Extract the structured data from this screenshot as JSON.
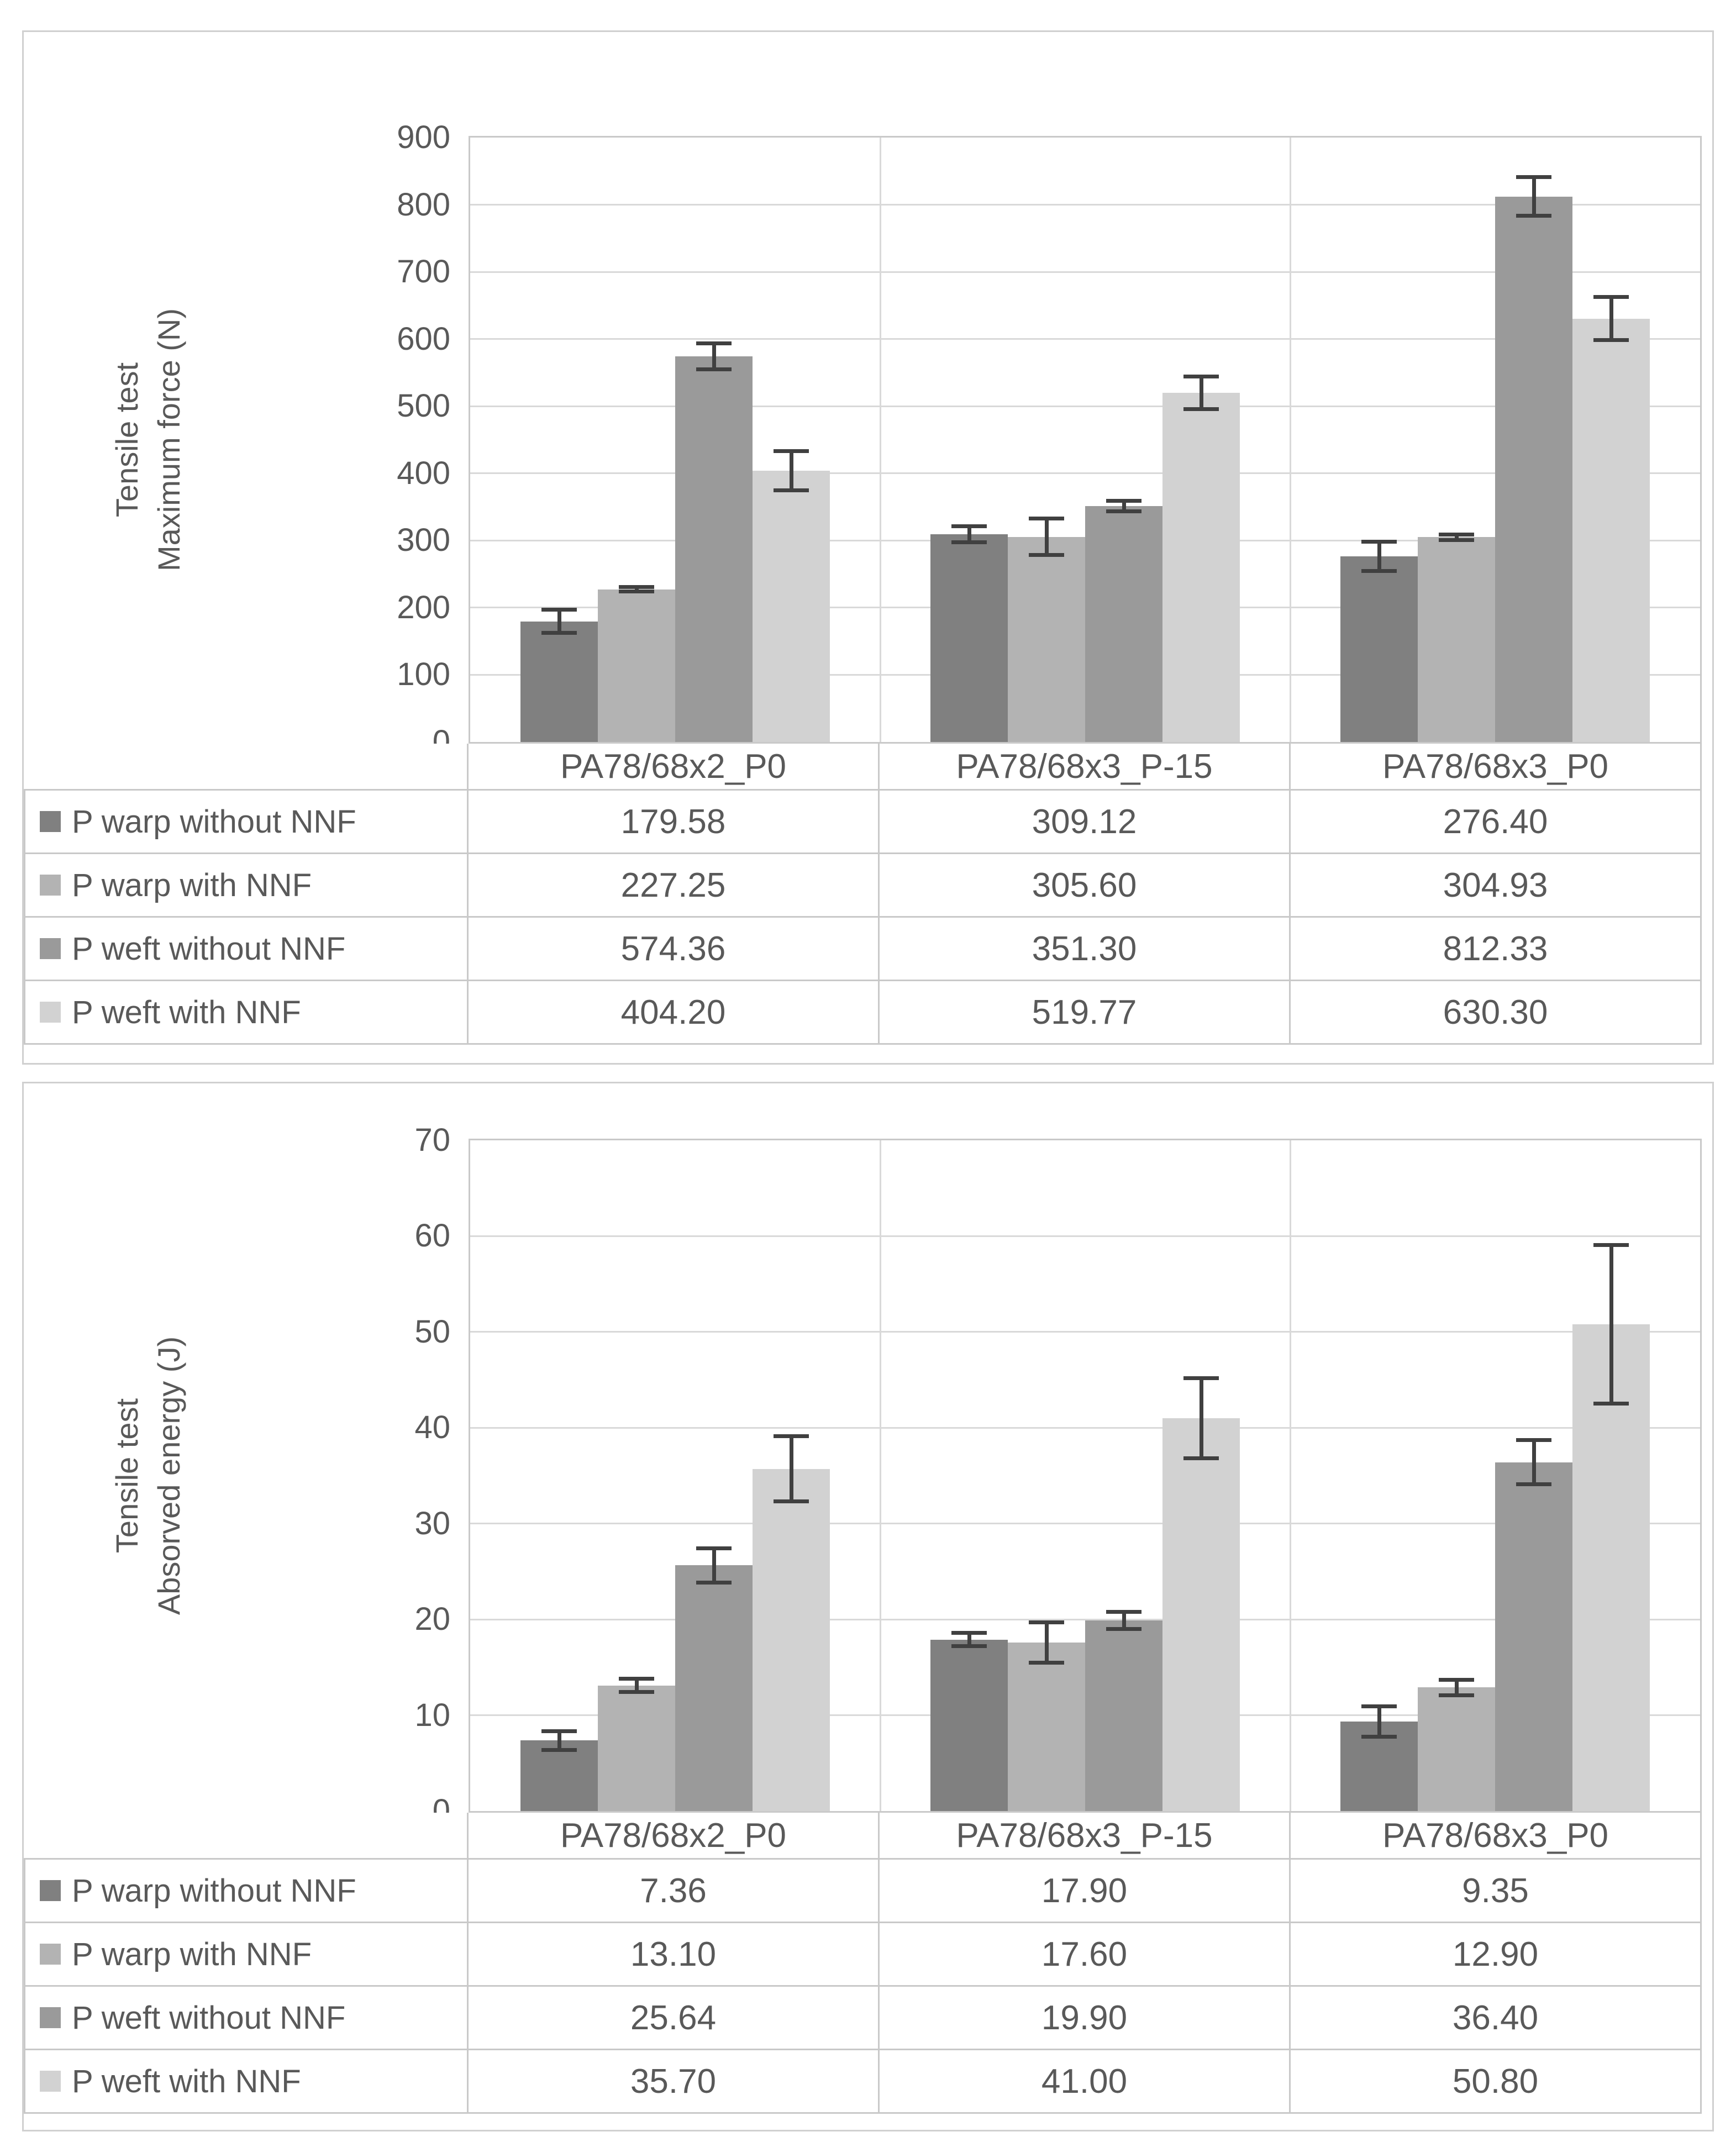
{
  "chart_data": [
    {
      "type": "bar",
      "title_line1": "Tensile test",
      "title_line2": "Maximum force (N)",
      "ylabel": "Tensile test Maximum force (N)",
      "xlabel": "",
      "ylim": [
        0,
        900
      ],
      "ytick_step": 100,
      "grid": true,
      "legend_position": "data-table-left",
      "error_bars": true,
      "categories": [
        "PA78/68x2_P0",
        "PA78/68x3_P-15",
        "PA78/68x3_P0"
      ],
      "series": [
        {
          "name": "P warp without NNF",
          "color": "#808080",
          "values": [
            179.58,
            309.12,
            276.4
          ],
          "display": [
            "179.58",
            "309.12",
            "276.40"
          ],
          "errors": [
            20,
            15,
            25
          ]
        },
        {
          "name": "P warp with NNF",
          "color": "#b3b3b3",
          "values": [
            227.25,
            305.6,
            304.93
          ],
          "display": [
            "227.25",
            "305.60",
            "304.93"
          ],
          "errors": [
            6,
            30,
            7
          ]
        },
        {
          "name": "P weft without NNF",
          "color": "#9a9a9a",
          "values": [
            574.36,
            351.3,
            812.33
          ],
          "display": [
            "574.36",
            "351.30",
            "812.33"
          ],
          "errors": [
            22,
            11,
            32
          ]
        },
        {
          "name": "P weft with NNF",
          "color": "#d2d2d2",
          "values": [
            404.2,
            519.77,
            630.3
          ],
          "display": [
            "404.20",
            "519.77",
            "630.30"
          ],
          "errors": [
            32,
            27,
            35
          ]
        }
      ]
    },
    {
      "type": "bar",
      "title_line1": "Tensile test",
      "title_line2": "Absorved energy (J)",
      "ylabel": "Tensile test Absorved energy (J)",
      "xlabel": "",
      "ylim": [
        0,
        70
      ],
      "ytick_step": 10,
      "grid": true,
      "legend_position": "data-table-left",
      "error_bars": true,
      "categories": [
        "PA78/68x2_P0",
        "PA78/68x3_P-15",
        "PA78/68x3_P0"
      ],
      "series": [
        {
          "name": "P warp without NNF",
          "color": "#808080",
          "values": [
            7.36,
            17.9,
            9.35
          ],
          "display": [
            "7.36",
            "17.90",
            "9.35"
          ],
          "errors": [
            1.2,
            0.9,
            1.8
          ]
        },
        {
          "name": "P warp with NNF",
          "color": "#b3b3b3",
          "values": [
            13.1,
            17.6,
            12.9
          ],
          "display": [
            "13.10",
            "17.60",
            "12.90"
          ],
          "errors": [
            0.9,
            2.3,
            1.0
          ]
        },
        {
          "name": "P weft without NNF",
          "color": "#9a9a9a",
          "values": [
            25.64,
            19.9,
            36.4
          ],
          "display": [
            "25.64",
            "19.90",
            "36.40"
          ],
          "errors": [
            2.0,
            1.1,
            2.5
          ]
        },
        {
          "name": "P weft with NNF",
          "color": "#d2d2d2",
          "values": [
            35.7,
            41.0,
            50.8
          ],
          "display": [
            "35.70",
            "41.00",
            "50.80"
          ],
          "errors": [
            3.6,
            4.4,
            8.5
          ]
        }
      ]
    }
  ],
  "colors": {
    "text": "#595959",
    "panel_border": "#d0d0d0",
    "table_border": "#c9c9c9",
    "gridline": "#d9d9d9",
    "error_bar": "#404040",
    "background": "#ffffff"
  }
}
